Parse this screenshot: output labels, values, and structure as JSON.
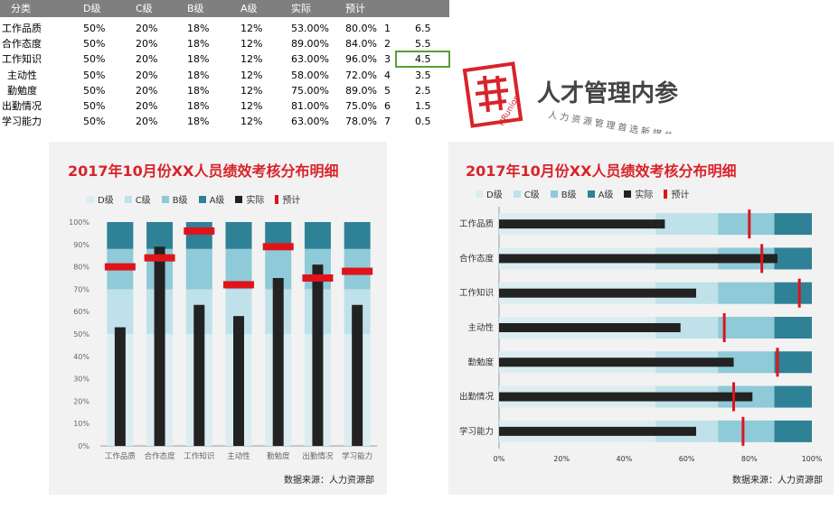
{
  "sheet": {
    "headers": [
      "分类",
      "D级",
      "C级",
      "B级",
      "A级",
      "实际",
      "预计"
    ],
    "rows": [
      {
        "cat": "工作品质",
        "d": "50%",
        "c": "20%",
        "b": "18%",
        "a": "12%",
        "actual": "53.00%",
        "plan": "80.0%",
        "idx": "1",
        "pos": "6.5"
      },
      {
        "cat": "合作态度",
        "d": "50%",
        "c": "20%",
        "b": "18%",
        "a": "12%",
        "actual": "89.00%",
        "plan": "84.0%",
        "idx": "2",
        "pos": "5.5"
      },
      {
        "cat": "工作知识",
        "d": "50%",
        "c": "20%",
        "b": "18%",
        "a": "12%",
        "actual": "63.00%",
        "plan": "96.0%",
        "idx": "3",
        "pos": "4.5"
      },
      {
        "cat": "主动性",
        "d": "50%",
        "c": "20%",
        "b": "18%",
        "a": "12%",
        "actual": "58.00%",
        "plan": "72.0%",
        "idx": "4",
        "pos": "3.5"
      },
      {
        "cat": "勤勉度",
        "d": "50%",
        "c": "20%",
        "b": "18%",
        "a": "12%",
        "actual": "75.00%",
        "plan": "89.0%",
        "idx": "5",
        "pos": "2.5"
      },
      {
        "cat": "出勤情况",
        "d": "50%",
        "c": "20%",
        "b": "18%",
        "a": "12%",
        "actual": "81.00%",
        "plan": "75.0%",
        "idx": "6",
        "pos": "1.5"
      },
      {
        "cat": "学习能力",
        "d": "50%",
        "c": "20%",
        "b": "18%",
        "a": "12%",
        "actual": "63.00%",
        "plan": "78.0%",
        "idx": "7",
        "pos": "0.5"
      }
    ]
  },
  "logo": {
    "text": "人才管理内参",
    "subtext": "人力资源管理首选新媒体",
    "ring_text": "HRunion"
  },
  "colors": {
    "d": "#dcedf2",
    "c": "#bfe1ea",
    "b": "#8ecad8",
    "a": "#2f8196",
    "actual": "#222222",
    "plan": "#e0131b",
    "title": "#d9232a"
  },
  "chart_data": [
    {
      "type": "bar",
      "orientation": "vertical",
      "title": "2017年10月份XX人员绩效考核分布明细",
      "categories": [
        "工作品质",
        "合作态度",
        "工作知识",
        "主动性",
        "勤勉度",
        "出勤情况",
        "学习能力"
      ],
      "series": [
        {
          "name": "D级",
          "values": [
            50,
            50,
            50,
            50,
            50,
            50,
            50
          ]
        },
        {
          "name": "C级",
          "values": [
            20,
            20,
            20,
            20,
            20,
            20,
            20
          ]
        },
        {
          "name": "B级",
          "values": [
            18,
            18,
            18,
            18,
            18,
            18,
            18
          ]
        },
        {
          "name": "A级",
          "values": [
            12,
            12,
            12,
            12,
            12,
            12,
            12
          ]
        },
        {
          "name": "实际",
          "values": [
            53,
            89,
            63,
            58,
            75,
            81,
            63
          ]
        },
        {
          "name": "预计",
          "values": [
            80,
            84,
            96,
            72,
            89,
            75,
            78
          ]
        }
      ],
      "ylim": [
        0,
        100
      ],
      "yticks": [
        "0%",
        "10%",
        "20%",
        "30%",
        "40%",
        "50%",
        "60%",
        "70%",
        "80%",
        "90%",
        "100%"
      ],
      "legend": "top",
      "source": "数据来源：人力资源部"
    },
    {
      "type": "bar",
      "orientation": "horizontal",
      "title": "2017年10月份XX人员绩效考核分布明细",
      "categories": [
        "工作品质",
        "合作态度",
        "工作知识",
        "主动性",
        "勤勉度",
        "出勤情况",
        "学习能力"
      ],
      "series": [
        {
          "name": "D级",
          "values": [
            50,
            50,
            50,
            50,
            50,
            50,
            50
          ]
        },
        {
          "name": "C级",
          "values": [
            20,
            20,
            20,
            20,
            20,
            20,
            20
          ]
        },
        {
          "name": "B级",
          "values": [
            18,
            18,
            18,
            18,
            18,
            18,
            18
          ]
        },
        {
          "name": "A级",
          "values": [
            12,
            12,
            12,
            12,
            12,
            12,
            12
          ]
        },
        {
          "name": "实际",
          "values": [
            53,
            89,
            63,
            58,
            75,
            81,
            63
          ]
        },
        {
          "name": "预计",
          "values": [
            80,
            84,
            96,
            72,
            89,
            75,
            78
          ]
        }
      ],
      "xlim": [
        0,
        100
      ],
      "xticks": [
        "0%",
        "20%",
        "40%",
        "60%",
        "80%",
        "100%"
      ],
      "legend": "top",
      "source": "数据来源：人力资源部"
    }
  ]
}
